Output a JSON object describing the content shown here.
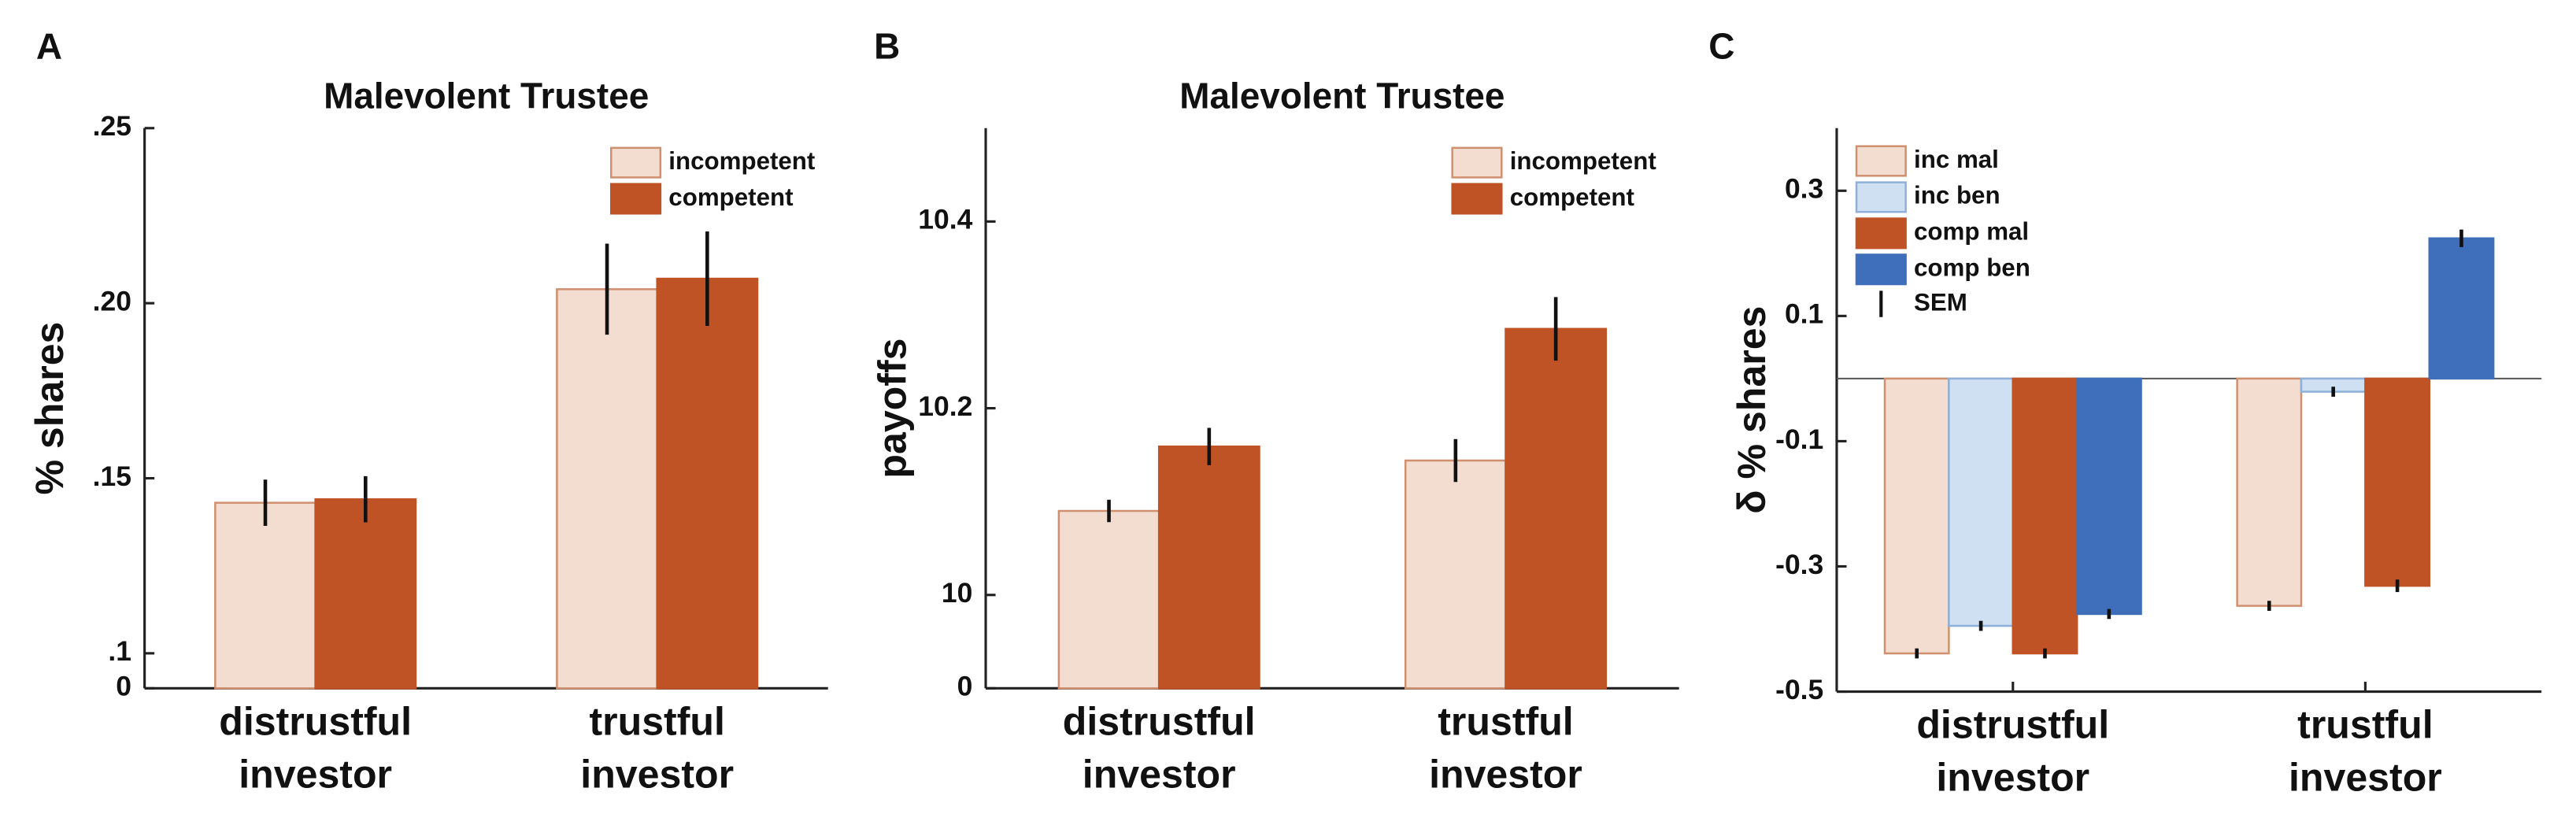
{
  "chart_data": [
    {
      "type": "bar",
      "panel": "A",
      "title": "Malevolent Trustee",
      "ylabel": "% shares",
      "categories": [
        [
          "distrustful",
          "investor"
        ],
        [
          "trustful",
          "investor"
        ]
      ],
      "series": [
        {
          "name": "incompetent",
          "color": "#f3ddd0",
          "edge": "#d0906f",
          "values": [
            0.143,
            0.204
          ],
          "errors": [
            0.0066,
            0.013
          ]
        },
        {
          "name": "competent",
          "color": "#bf5326",
          "edge": "#bf5326",
          "values": [
            0.144,
            0.207
          ],
          "errors": [
            0.0066,
            0.0135
          ]
        }
      ],
      "ylim": [
        0.09,
        0.25
      ],
      "yticks": [
        0,
        {
          "value": 0.1,
          "label": ".1"
        },
        {
          "value": 0.15,
          "label": ".15"
        },
        {
          "value": 0.2,
          "label": ".20"
        },
        {
          "value": 0.25,
          "label": ".25"
        }
      ],
      "axis_break": true,
      "legend": "upper right"
    },
    {
      "type": "bar",
      "panel": "B",
      "title": "Malevolent Trustee",
      "ylabel": "payoffs",
      "categories": [
        [
          "distrustful",
          "investor"
        ],
        [
          "trustful",
          "investor"
        ]
      ],
      "series": [
        {
          "name": "incompetent",
          "color": "#f3ddd0",
          "edge": "#d0906f",
          "values": [
            10.09,
            10.144
          ],
          "errors": [
            0.012,
            0.023
          ]
        },
        {
          "name": "competent",
          "color": "#bf5326",
          "edge": "#bf5326",
          "values": [
            10.159,
            10.285
          ],
          "errors": [
            0.02,
            0.034
          ]
        }
      ],
      "ylim": [
        9.9,
        10.5
      ],
      "yticks": [
        0,
        10,
        10.2,
        10.4
      ],
      "axis_break": true,
      "legend": "upper right"
    },
    {
      "type": "bar",
      "panel": "C",
      "ylabel": "δ % shares",
      "categories": [
        [
          "distrustful",
          "investor"
        ],
        [
          "trustful",
          "investor"
        ]
      ],
      "series": [
        {
          "name": "inc mal",
          "color": "#f3ddd0",
          "edge": "#d0906f",
          "values": [
            -0.439,
            -0.363
          ],
          "errors": [
            0.008,
            0.008
          ]
        },
        {
          "name": "inc ben",
          "color": "#cfe0f2",
          "edge": "#8fb0d8",
          "values": [
            -0.395,
            -0.021
          ],
          "errors": [
            0.008,
            0.008
          ]
        },
        {
          "name": "comp mal",
          "color": "#bf5326",
          "edge": "#bf5326",
          "values": [
            -0.439,
            -0.331
          ],
          "errors": [
            0.008,
            0.01
          ]
        },
        {
          "name": "comp ben",
          "color": "#3f6fba",
          "edge": "#3f6fba",
          "values": [
            -0.376,
            0.224
          ],
          "errors": [
            0.008,
            0.014
          ]
        }
      ],
      "error_label": "SEM",
      "ylim": [
        -0.5,
        0.4
      ],
      "yticks": [
        -0.5,
        -0.3,
        -0.1,
        0.1,
        0.3
      ],
      "legend": "upper left"
    }
  ]
}
